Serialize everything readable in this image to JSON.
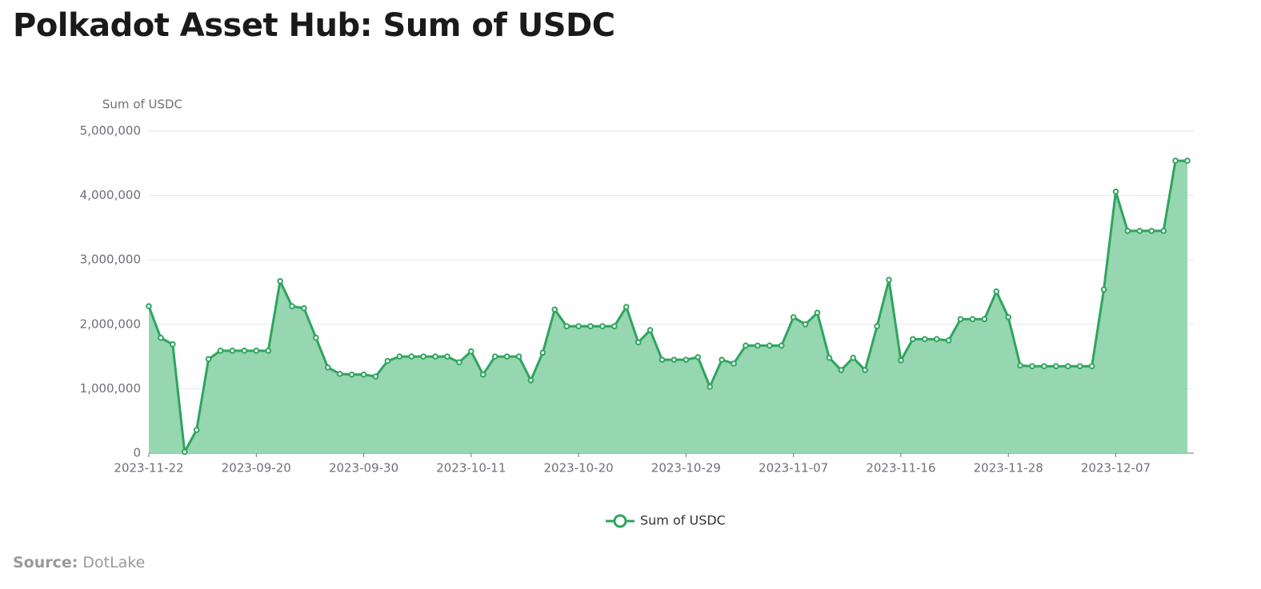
{
  "chart_data": {
    "type": "line",
    "title": "Polkadot Asset Hub: Sum of USDC",
    "y_axis_label": "Sum of USDC",
    "source_label": "Source:",
    "source": "DotLake",
    "categories": [
      "2023-11-22",
      null,
      null,
      null,
      null,
      null,
      null,
      null,
      null,
      "2023-09-20",
      null,
      null,
      null,
      null,
      null,
      null,
      null,
      null,
      "2023-09-30",
      null,
      null,
      null,
      null,
      null,
      null,
      null,
      null,
      "2023-10-11",
      null,
      null,
      null,
      null,
      null,
      null,
      null,
      null,
      "2023-10-20",
      null,
      null,
      null,
      null,
      null,
      null,
      null,
      null,
      "2023-10-29",
      null,
      null,
      null,
      null,
      null,
      null,
      null,
      null,
      "2023-11-07",
      null,
      null,
      null,
      null,
      null,
      null,
      null,
      null,
      "2023-11-16",
      null,
      null,
      null,
      null,
      null,
      null,
      null,
      null,
      "2023-11-28",
      null,
      null,
      null,
      null,
      null,
      null,
      null,
      null,
      "2023-12-07",
      null,
      null,
      null,
      null,
      null,
      null
    ],
    "series": [
      {
        "name": "Sum of USDC",
        "color": "#2ea55e",
        "area_color": "#96d6b0",
        "values": [
          2280000,
          1790000,
          1690000,
          20000,
          360000,
          1460000,
          1590000,
          1590000,
          1590000,
          1590000,
          1590000,
          2670000,
          2280000,
          2250000,
          1790000,
          1330000,
          1230000,
          1220000,
          1220000,
          1190000,
          1430000,
          1500000,
          1500000,
          1500000,
          1500000,
          1500000,
          1410000,
          1580000,
          1220000,
          1500000,
          1500000,
          1500000,
          1130000,
          1560000,
          2230000,
          1970000,
          1970000,
          1970000,
          1970000,
          1970000,
          2270000,
          1720000,
          1910000,
          1450000,
          1450000,
          1450000,
          1490000,
          1030000,
          1450000,
          1390000,
          1670000,
          1670000,
          1670000,
          1670000,
          2110000,
          2000000,
          2180000,
          1480000,
          1290000,
          1480000,
          1290000,
          1970000,
          2690000,
          1440000,
          1770000,
          1770000,
          1770000,
          1750000,
          2080000,
          2080000,
          2080000,
          2510000,
          2110000,
          1360000,
          1350000,
          1350000,
          1350000,
          1350000,
          1350000,
          1350000,
          2540000,
          4060000,
          3450000,
          3450000,
          3450000,
          3450000,
          4540000,
          4540000
        ]
      }
    ],
    "ylim": [
      0,
      5000000
    ],
    "yticks": [
      0,
      {
        "value": 1000000,
        "label": "1,000,000"
      },
      {
        "value": 2000000,
        "label": "2,000,000"
      },
      {
        "value": 3000000,
        "label": "3,000,000"
      },
      {
        "value": 4000000,
        "label": "4,000,000"
      },
      {
        "value": 5000000,
        "label": "5,000,000"
      }
    ],
    "grid": true,
    "legend": "bottom"
  }
}
